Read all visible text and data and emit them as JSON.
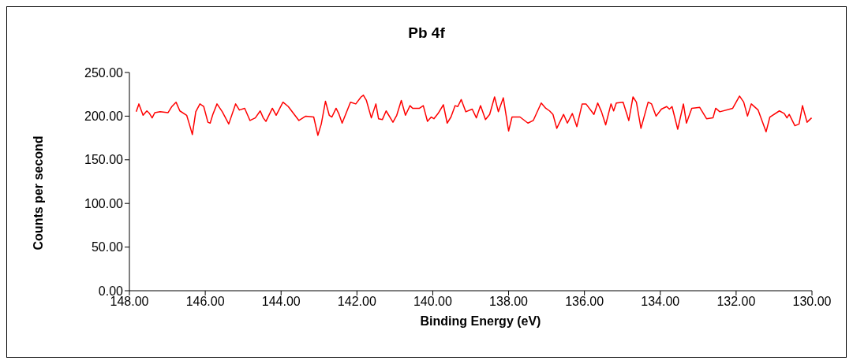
{
  "chart_data": {
    "type": "line",
    "title": "Pb 4f",
    "xlabel": "Binding Energy (eV)",
    "ylabel": "Counts per second",
    "xlim": [
      148,
      130
    ],
    "xticks": [
      {
        "value": 148,
        "label": "148.00"
      },
      {
        "value": 146,
        "label": "146.00"
      },
      {
        "value": 144,
        "label": "144.00"
      },
      {
        "value": 142,
        "label": "142.00"
      },
      {
        "value": 140,
        "label": "140.00"
      },
      {
        "value": 138,
        "label": "138.00"
      },
      {
        "value": 136,
        "label": "136.00"
      },
      {
        "value": 134,
        "label": "134.00"
      },
      {
        "value": 132,
        "label": "132.00"
      },
      {
        "value": 130,
        "label": "130.00"
      }
    ],
    "ylim": [
      0,
      250
    ],
    "yticks": [
      {
        "value": 0,
        "label": "0.00"
      },
      {
        "value": 50,
        "label": "50.00"
      },
      {
        "value": 100,
        "label": "100.00"
      },
      {
        "value": 150,
        "label": "150.00"
      },
      {
        "value": 200,
        "label": "200.00"
      },
      {
        "value": 250,
        "label": "250.00"
      }
    ],
    "grid": false,
    "legend": false,
    "marker": "none",
    "line_style": "solid",
    "series": [
      {
        "color": "#ff0000",
        "x": [
          147.82,
          147.75,
          147.64,
          147.54,
          147.47,
          147.4,
          147.33,
          147.19,
          146.98,
          146.88,
          146.77,
          146.67,
          146.49,
          146.42,
          146.34,
          146.25,
          146.14,
          146.04,
          145.93,
          145.87,
          145.8,
          145.69,
          145.55,
          145.38,
          145.2,
          145.1,
          144.96,
          144.82,
          144.68,
          144.55,
          144.47,
          144.4,
          144.23,
          144.13,
          143.95,
          143.81,
          143.53,
          143.35,
          143.14,
          143.03,
          142.94,
          142.83,
          142.73,
          142.66,
          142.55,
          142.48,
          142.39,
          142.17,
          142.03,
          141.89,
          141.83,
          141.75,
          141.62,
          141.5,
          141.43,
          141.33,
          141.23,
          141.05,
          140.95,
          140.83,
          140.72,
          140.6,
          140.53,
          140.35,
          140.25,
          140.14,
          140.04,
          139.97,
          139.86,
          139.72,
          139.62,
          139.52,
          139.41,
          139.34,
          139.25,
          139.13,
          138.96,
          138.85,
          138.74,
          138.61,
          138.5,
          138.37,
          138.27,
          138.14,
          138.0,
          137.91,
          137.7,
          137.49,
          137.35,
          137.14,
          137.02,
          136.92,
          136.83,
          136.73,
          136.55,
          136.45,
          136.32,
          136.2,
          136.06,
          135.96,
          135.82,
          135.75,
          135.65,
          135.55,
          135.44,
          135.3,
          135.23,
          135.16,
          134.98,
          134.83,
          134.72,
          134.63,
          134.51,
          134.32,
          134.23,
          134.11,
          133.97,
          133.83,
          133.76,
          133.69,
          133.54,
          133.39,
          133.31,
          133.17,
          132.96,
          132.78,
          132.61,
          132.54,
          132.43,
          132.09,
          131.91,
          131.8,
          131.7,
          131.6,
          131.42,
          131.21,
          131.11,
          130.86,
          130.73,
          130.66,
          130.6,
          130.45,
          130.34,
          130.25,
          130.13,
          130.01
        ],
        "values": [
          205,
          214,
          201,
          206,
          203,
          198,
          204,
          205,
          204,
          211,
          216,
          206,
          201,
          191,
          179,
          205,
          214,
          211,
          193,
          192,
          202,
          214,
          205,
          191,
          214,
          207,
          209,
          195,
          198,
          206,
          198,
          194,
          209,
          201,
          216,
          211,
          195,
          200,
          199,
          178,
          191,
          217,
          201,
          199,
          209,
          203,
          192,
          216,
          214,
          222,
          224,
          218,
          198,
          214,
          197,
          196,
          206,
          193,
          201,
          218,
          201,
          212,
          209,
          209,
          212,
          194,
          199,
          197,
          203,
          213,
          192,
          199,
          212,
          211,
          219,
          205,
          208,
          198,
          212,
          196,
          202,
          222,
          205,
          221,
          183,
          199,
          199,
          192,
          195,
          215,
          209,
          206,
          202,
          186,
          202,
          192,
          203,
          188,
          214,
          214,
          206,
          202,
          215,
          205,
          190,
          214,
          206,
          215,
          216,
          195,
          222,
          216,
          186,
          216,
          214,
          200,
          208,
          211,
          208,
          211,
          185,
          214,
          192,
          209,
          210,
          197,
          198,
          209,
          205,
          209,
          223,
          216,
          200,
          214,
          207,
          182,
          199,
          206,
          203,
          198,
          202,
          189,
          191,
          212,
          193,
          198
        ]
      }
    ]
  }
}
